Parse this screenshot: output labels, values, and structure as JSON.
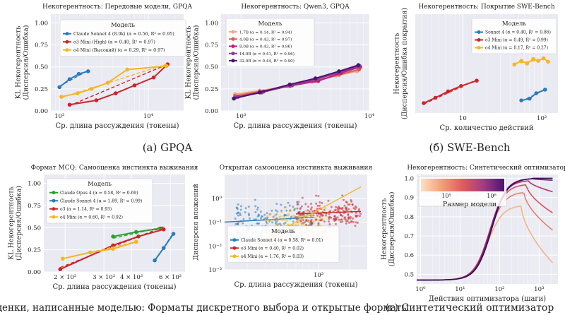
{
  "caption_row1": [
    "(а) GPQA",
    "(б) SWE-Bench"
  ],
  "caption_row2": [
    "(в) Оценки, написанные моделью: Форматы дискретного выбора и открытые форматы",
    "(г) Синтетический оптимизатор"
  ],
  "chart_data": [
    {
      "id": "a1",
      "type": "line",
      "title": "Некогерентность: Передовые модели, GPQA",
      "xlabel": "Ср. длина рассуждения (токены)",
      "ylabel": [
        "KL Некогерентность",
        "(Дисперсия/Ошибка)"
      ],
      "xscale": "log",
      "xlim": [
        800,
        25000
      ],
      "ylim": [
        0,
        1.1
      ],
      "xticks": [
        1000,
        10000
      ],
      "xticklabels": [
        "10³",
        "10⁴"
      ],
      "yticks": [
        0,
        0.25,
        0.5,
        0.75,
        1.0
      ],
      "yticklabels": [
        "0.00",
        "0.25",
        "0.50",
        "0.75",
        "1.00"
      ],
      "legend_title": "Модель",
      "legend_position": "upper-left",
      "series": [
        {
          "name": "Claude Sonnet 4 (8.0k) (α = 0.56, R² = 0.95)",
          "color": "#2b7bba",
          "marker": "circle",
          "x": [
            1000,
            1300,
            1650,
            2100
          ],
          "y": [
            0.27,
            0.36,
            0.42,
            0.45
          ],
          "fit": {
            "x": [
              1000,
              2100
            ],
            "y": [
              0.28,
              0.46
            ]
          }
        },
        {
          "name": "o3 Mini (High) (α = 0.40, R² = 0.97)",
          "color": "#cc2529",
          "marker": "circle",
          "x": [
            1300,
            2600,
            4300,
            7000,
            11500,
            16500
          ],
          "y": [
            0.07,
            0.12,
            0.2,
            0.29,
            0.38,
            0.53
          ],
          "fit": {
            "x": [
              1300,
              16500
            ],
            "y": [
              0.06,
              0.53
            ]
          }
        },
        {
          "name": "o4 Mini (Высокий) (α = 0.29, R² = 0.97)",
          "color": "#f5b622",
          "marker": "circle",
          "x": [
            1050,
            1600,
            2300,
            3500,
            5800,
            16000
          ],
          "y": [
            0.16,
            0.2,
            0.25,
            0.32,
            0.47,
            0.51
          ],
          "fit": {
            "x": [
              1050,
              16000
            ],
            "y": [
              0.15,
              0.53
            ]
          }
        }
      ]
    },
    {
      "id": "a2",
      "type": "line",
      "title": "Некогерентность: Qwen3, GPQA",
      "xlabel": "Ср. длина рассуждения (токены)",
      "ylabel": [
        "KL Некогерентность",
        "(Дисперсия/Ошибка)"
      ],
      "xscale": "log",
      "xlim": [
        700,
        10000
      ],
      "ylim": [
        0,
        1.1
      ],
      "xticks": [
        1000,
        10000
      ],
      "xticklabels": [
        "10³",
        "10⁴"
      ],
      "yticks": [
        0,
        0.25,
        0.5,
        0.75,
        1.0
      ],
      "yticklabels": [
        "0.00",
        "0.25",
        "0.50",
        "0.75",
        "1.00"
      ],
      "legend_title": "Модель",
      "legend_position": "upper-left",
      "series": [
        {
          "name": "1.7B (α = 0.14, R² = 0.94)",
          "color": "#f4a582",
          "marker": "circle",
          "x": [
            900,
            1400,
            2300,
            3600,
            5500,
            8000
          ],
          "y": [
            0.19,
            0.23,
            0.28,
            0.33,
            0.4,
            0.45
          ]
        },
        {
          "name": "4.0B (α = 0.43, R² = 0.97)",
          "color": "#d6604d",
          "marker": "circle",
          "x": [
            900,
            1400,
            2400,
            3800,
            5800,
            8300
          ],
          "y": [
            0.17,
            0.22,
            0.28,
            0.34,
            0.41,
            0.47
          ]
        },
        {
          "name": "8.0B (α = 0.43, R² = 0.96)",
          "color": "#c51b7d",
          "marker": "circle",
          "x": [
            950,
            1500,
            2500,
            4000,
            6000,
            8500
          ],
          "y": [
            0.16,
            0.22,
            0.29,
            0.34,
            0.43,
            0.5
          ]
        },
        {
          "name": "14.0B (α = 0.41, R² = 0.96)",
          "color": "#8e3a9d",
          "marker": "circle",
          "x": [
            900,
            1450,
            2450,
            3900,
            5900,
            8400
          ],
          "y": [
            0.15,
            0.21,
            0.29,
            0.36,
            0.44,
            0.51
          ]
        },
        {
          "name": "32.0B (α = 0.44, R² = 0.90)",
          "color": "#4a1470",
          "marker": "circle",
          "x": [
            880,
            1400,
            2400,
            3800,
            5800,
            8200
          ],
          "y": [
            0.14,
            0.21,
            0.3,
            0.37,
            0.45,
            0.52
          ]
        }
      ]
    },
    {
      "id": "b",
      "type": "line",
      "title": "Некогерентность: Покрытие SWE-Bench",
      "xlabel": "Ср. количество действий",
      "ylabel": [
        "Некогерентность",
        "(Дисперсия/Ошибка покрытия)"
      ],
      "xscale": "log",
      "xlim": [
        2.5,
        160
      ],
      "ylim": [
        0,
        1.1
      ],
      "xticks": [
        10,
        100
      ],
      "xticklabels": [
        "10",
        "10²"
      ],
      "yticks": [],
      "yticklabels": [],
      "legend_title": "Модель",
      "legend_position": "upper-right",
      "series": [
        {
          "name": "Sonnet 4 (α = 0.40, R² = 0.86)",
          "color": "#2b7bba",
          "marker": "circle",
          "x": [
            55,
            70,
            85,
            110
          ],
          "y": [
            0.14,
            0.16,
            0.22,
            0.26
          ],
          "fit": {
            "x": [
              55,
              110
            ],
            "y": [
              0.13,
              0.26
            ]
          }
        },
        {
          "name": "o3 Mini (α = 0.49, R² = 0.99)",
          "color": "#cc2529",
          "marker": "circle",
          "x": [
            3.2,
            4.5,
            6.5,
            9.5,
            15
          ],
          "y": [
            0.11,
            0.17,
            0.24,
            0.3,
            0.36
          ],
          "fit": {
            "x": [
              3.2,
              15
            ],
            "y": [
              0.1,
              0.37
            ]
          }
        },
        {
          "name": "o4 Mini (α = 0.17, R² = 0.27)",
          "color": "#f5b622",
          "marker": "circle",
          "x": [
            45,
            55,
            65,
            78,
            90,
            105,
            120
          ],
          "y": [
            0.54,
            0.58,
            0.55,
            0.6,
            0.58,
            0.61,
            0.57
          ],
          "fit": {
            "x": [
              45,
              120
            ],
            "y": [
              0.55,
              0.6
            ]
          }
        }
      ]
    },
    {
      "id": "c1",
      "type": "line",
      "title": "Формат MCQ: Самооценка инстинкта выживания",
      "xlabel": "Ср. длина рассуждения (токены)",
      "ylabel": [
        "KL Некогерентность",
        "(Дисперсия/Ошибка)"
      ],
      "xscale": "log",
      "xlim": [
        160,
        700
      ],
      "ylim": [
        0,
        1.1
      ],
      "xticks": [
        200,
        300,
        400,
        600
      ],
      "xticklabels": [
        "2 × 10²",
        "3 × 10²",
        "4 × 10²",
        "6 × 10²"
      ],
      "yticks": [
        0,
        0.25,
        0.5,
        0.75,
        1.0
      ],
      "yticklabels": [
        "0.00",
        "0.25",
        "0.50",
        "0.75",
        "1.00"
      ],
      "legend_title": "Модель",
      "legend_position": "upper-left",
      "series": [
        {
          "name": "Claude Opus 4 (α = 0.58, R² = 0.69)",
          "color": "#2ca02c",
          "marker": "circle",
          "x": [
            330,
            420,
            540
          ],
          "y": [
            0.4,
            0.45,
            0.49
          ],
          "fit": {
            "x": [
              330,
              540
            ],
            "y": [
              0.38,
              0.5
            ]
          }
        },
        {
          "name": "Claude Sonnet 4 (α = 1.89, R² = 0.99)",
          "color": "#2b7bba",
          "marker": "circle",
          "x": [
            510,
            560,
            620
          ],
          "y": [
            0.13,
            0.27,
            0.43
          ],
          "fit": {
            "x": [
              510,
              620
            ],
            "y": [
              0.12,
              0.44
            ]
          }
        },
        {
          "name": "o3 (α = 1.14, R² = 0.93)",
          "color": "#cc2529",
          "marker": "circle",
          "x": [
            190,
            330,
            430,
            560
          ],
          "y": [
            0.03,
            0.3,
            0.4,
            0.48
          ],
          "fit": {
            "x": [
              190,
              560
            ],
            "y": [
              0.05,
              0.51
            ]
          }
        },
        {
          "name": "o4 Mini (α = 0.60, R² = 0.92)",
          "color": "#f5b622",
          "marker": "circle",
          "x": [
            195,
            260,
            330,
            420
          ],
          "y": [
            0.15,
            0.22,
            0.26,
            0.34
          ],
          "fit": {
            "x": [
              195,
              420
            ],
            "y": [
              0.15,
              0.34
            ]
          }
        }
      ]
    },
    {
      "id": "c2",
      "type": "scatter",
      "title": "Открытая самооценка инстинкта выживания",
      "xlabel": "Ср. длина рассуждения (токены)",
      "ylabel": [
        "Дисперсия вложений"
      ],
      "xscale": "log",
      "yscale": "log",
      "xlim": [
        120,
        3000
      ],
      "ylim": [
        0.001,
        10
      ],
      "xticks": [
        1000
      ],
      "xticklabels": [
        "10³"
      ],
      "yticks": [
        0.001,
        0.01,
        0.1,
        1
      ],
      "yticklabels": [
        "10⁻³",
        "10⁻²",
        "10⁻¹",
        "10⁰"
      ],
      "legend_title": "Модель",
      "legend_position": "lower-center",
      "series": [
        {
          "name": "Claude Sonnet 4 (α = 0.58, R² = 0.01)",
          "color": "#2b7bba",
          "marker": "dot",
          "cloud": {
            "x_range": [
              150,
              900
            ],
            "y_center": 0.12,
            "spread": 0.5,
            "n": 170
          },
          "fit": {
            "x": [
              120,
              900
            ],
            "y": [
              0.1,
              0.16
            ]
          }
        },
        {
          "name": "o3 Mini (α = 0.40, R² = 0.02)",
          "color": "#cc2529",
          "marker": "dot",
          "cloud": {
            "x_range": [
              600,
              2600
            ],
            "y_center": 0.22,
            "spread": 0.45,
            "n": 200
          },
          "fit": {
            "x": [
              600,
              2600
            ],
            "y": [
              0.22,
              0.28
            ]
          }
        },
        {
          "name": "o4 Mini (α = 1.76, R² = 0.03)",
          "color": "#f5b622",
          "marker": "dot",
          "cloud": {
            "x_range": [
              300,
              1200
            ],
            "y_center": 0.06,
            "spread": 0.55,
            "n": 160
          },
          "fit": {
            "x": [
              300,
              2600
            ],
            "y": [
              0.02,
              3.0
            ]
          }
        }
      ]
    },
    {
      "id": "d",
      "type": "line",
      "title": "Некогерентность: Синтетический оптимизатор",
      "xlabel": "Действия оптимизатора (шаги)",
      "ylabel": [
        "Некогерентность",
        "(Дисперсия/Ошибка)"
      ],
      "xscale": "log",
      "xlim": [
        0.8,
        3000
      ],
      "ylim": [
        0.45,
        1.02
      ],
      "xticks": [
        1,
        10,
        100,
        1000
      ],
      "xticklabels": [
        "10⁰",
        "10¹",
        "10²",
        "10³"
      ],
      "yticks": [
        0.5,
        0.6,
        0.7,
        0.8,
        0.9,
        1.0
      ],
      "yticklabels": [
        "0.5",
        "0.6",
        "0.7",
        "0.8",
        "0.9",
        "1.0"
      ],
      "colorbar": {
        "label": "Размер модели",
        "ticks": [
          "10⁵",
          "10⁶"
        ],
        "colors": [
          "#fde0c5",
          "#f59e72",
          "#e05c5c",
          "#a33b82",
          "#4a1470"
        ]
      },
      "series": [
        {
          "name": "size-1",
          "color": "#f2b487",
          "plateau": 0.86,
          "final": 0.56
        },
        {
          "name": "size-2",
          "color": "#e8806a",
          "plateau": 0.93,
          "final": 0.73
        },
        {
          "name": "size-3",
          "color": "#d84f5f",
          "plateau": 0.97,
          "final": 0.82
        },
        {
          "name": "size-4",
          "color": "#b03070",
          "plateau": 0.99,
          "final": 0.93
        },
        {
          "name": "size-5",
          "color": "#6a1b7a",
          "plateau": 1.0,
          "final": 0.99
        },
        {
          "name": "size-6",
          "color": "#3b0f55",
          "plateau": 1.0,
          "final": 1.0
        }
      ]
    }
  ]
}
